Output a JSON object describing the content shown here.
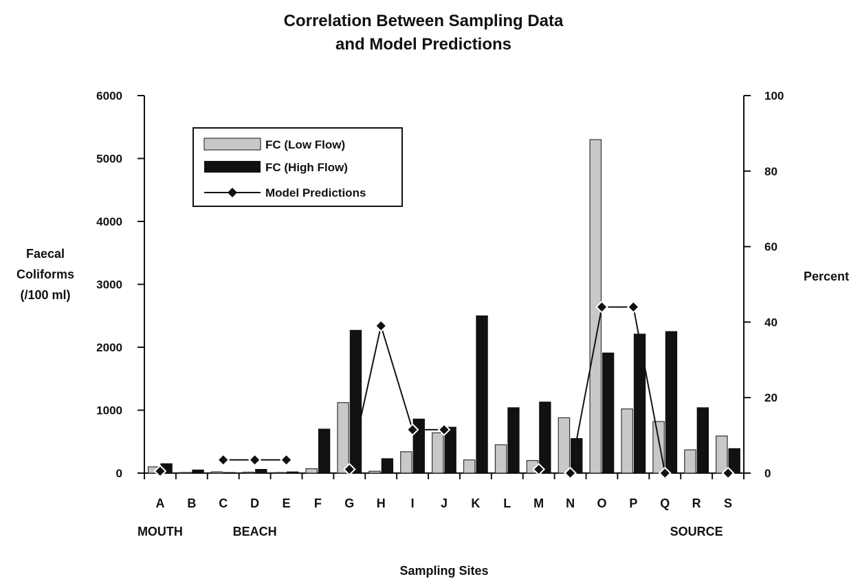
{
  "chart_data": {
    "type": "bar",
    "title_lines": [
      "Correlation Between Sampling Data",
      "and Model Predictions"
    ],
    "xlabel": "Sampling Sites",
    "ylabel_lines": [
      "Faecal",
      "Coliforms",
      "(/100 ml)"
    ],
    "y2label": "Percent",
    "categories": [
      "A",
      "B",
      "C",
      "D",
      "E",
      "F",
      "G",
      "H",
      "I",
      "J",
      "K",
      "L",
      "M",
      "N",
      "O",
      "P",
      "Q",
      "R",
      "S"
    ],
    "region_labels": [
      {
        "text": "MOUTH",
        "at": "A"
      },
      {
        "text": "BEACH",
        "at": "D"
      },
      {
        "text": "SOURCE",
        "at": "R"
      }
    ],
    "ylim": [
      0,
      6000
    ],
    "yticks": [
      0,
      1000,
      2000,
      3000,
      4000,
      5000,
      6000
    ],
    "y2lim": [
      0,
      100
    ],
    "y2ticks": [
      0,
      20,
      40,
      60,
      80,
      100
    ],
    "legend_position": "top-left",
    "series": [
      {
        "name": "FC (Low Flow)",
        "kind": "bar",
        "axis": "left",
        "color": "#c8c8c8",
        "values": [
          100,
          10,
          20,
          15,
          10,
          70,
          1120,
          30,
          340,
          640,
          210,
          450,
          200,
          880,
          5300,
          1020,
          820,
          370,
          590
        ]
      },
      {
        "name": "FC (High Flow)",
        "kind": "bar",
        "axis": "left",
        "color": "#111111",
        "values": [
          150,
          50,
          10,
          60,
          20,
          700,
          2270,
          230,
          860,
          730,
          2500,
          1040,
          1130,
          550,
          1910,
          2210,
          2250,
          1040,
          390
        ]
      },
      {
        "name": "Model Predictions",
        "kind": "line",
        "axis": "right",
        "color": "#111111",
        "segments": [
          {
            "x": [
              "A"
            ],
            "y": [
              0.5
            ]
          },
          {
            "x": [
              "C",
              "D",
              "E"
            ],
            "y": [
              3.5,
              3.5,
              3.5
            ]
          },
          {
            "x": [
              "G",
              "H",
              "I",
              "J"
            ],
            "y": [
              1,
              39,
              11.5,
              11.5
            ]
          },
          {
            "x": [
              "M"
            ],
            "y": [
              1
            ]
          },
          {
            "x": [
              "N",
              "O",
              "P",
              "Q"
            ],
            "y": [
              0,
              44,
              44,
              0
            ]
          },
          {
            "x": [
              "S"
            ],
            "y": [
              0
            ]
          }
        ]
      }
    ]
  }
}
